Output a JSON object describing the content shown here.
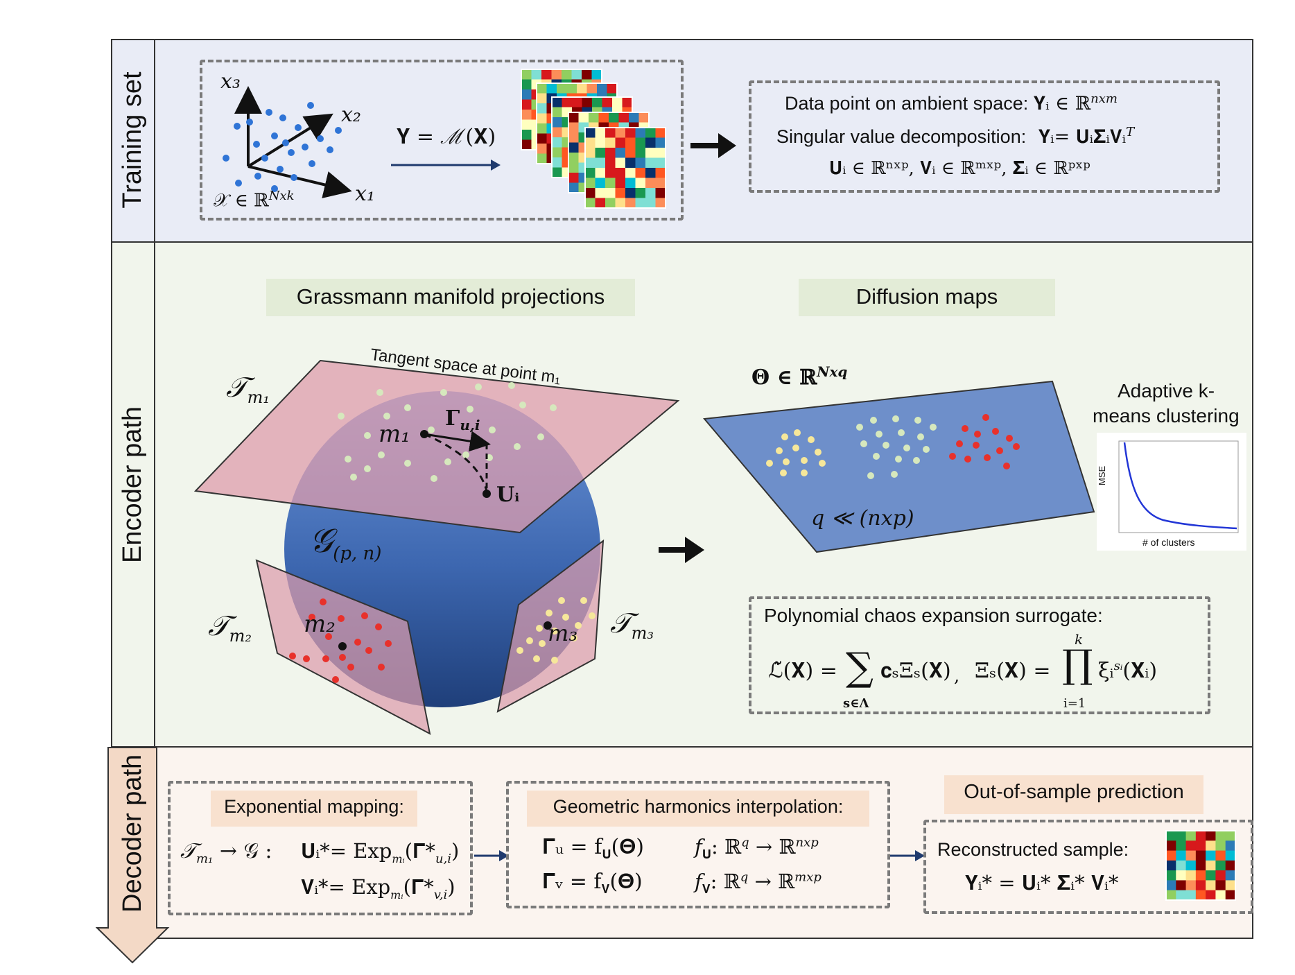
{
  "sections": {
    "training": "Training set",
    "encoder": "Encoder path",
    "decoder": "Decoder path"
  },
  "training": {
    "x3": "x₃",
    "x2": "x₂",
    "x1": "x₁",
    "domain": "𝒳 ∈ ℝ",
    "domain_sup": "Nxk",
    "map_eq": "𝐘 = ℳ(𝐗)",
    "svd_line1_text": "Data point on ambient space:",
    "svd_line1_math": "𝐘ᵢ ∈ ℝ",
    "svd_line1_sup": "nxm",
    "svd_line2_text": "Singular value decomposition:",
    "svd_line2_math": "𝐘ᵢ= 𝐔ᵢ𝚺ᵢ𝐕ᵢ",
    "svd_line2_sup": "T",
    "svd_line3": "𝐔ᵢ ∈ ℝⁿˣᵖ, 𝐕ᵢ ∈ ℝᵐˣᵖ, 𝚺ᵢ ∈ ℝᵖˣᵖ"
  },
  "encoder": {
    "grassmann_title": "Grassmann manifold projections",
    "diffusion_title": "Diffusion maps",
    "tangent_label": "Tangent space at point m₁",
    "t_m1": "𝒯",
    "t_m1_sub": "m₁",
    "t_m2": "𝒯",
    "t_m2_sub": "m₂",
    "t_m3": "𝒯",
    "t_m3_sub": "m₃",
    "m1": "m₁",
    "m2": "m₂",
    "m3": "m₃",
    "gamma": "𝚪",
    "gamma_sub": "u,i",
    "u_i": "𝐔ᵢ",
    "grassmann_symbol": "𝒢",
    "grassmann_sub": "(p, n)",
    "theta": "𝚯 ∈ ℝ",
    "theta_sup": "Nxq",
    "q_rel": "q  ≪ (nxp)",
    "kmeans_title_1": "Adaptive k-",
    "kmeans_title_2": "means clustering",
    "kmeans_ylabel": "MSE",
    "kmeans_xlabel": "# of clusters",
    "pce_title": "Polynomial chaos expansion surrogate:",
    "pce_lhs": "ℒ̃(𝐗) =",
    "pce_sum": "∑",
    "pce_sum_sub": "s∈Λ",
    "pce_term": "𝐜ₛΞₛ(𝐗)",
    "pce_comma": ",",
    "pce_xi": "Ξₛ(𝐗) =",
    "pce_prod": "∏",
    "pce_prod_sup": "k",
    "pce_prod_sub": "i=1",
    "pce_prod_term": "ξᵢ",
    "pce_prod_term_sup": "sᵢ",
    "pce_prod_term_tail": "(𝐗ᵢ)"
  },
  "decoder": {
    "exp_title": "Exponential mapping:",
    "exp_arrow_lhs": "𝒯",
    "exp_arrow_lhs_sub": "m₁",
    "exp_arrow_rhs": "→ 𝒢 :",
    "exp_u": "𝐔ᵢ*= Exp",
    "exp_u_sub": "mᵢ",
    "exp_u_arg": "(𝚪*",
    "exp_u_arg_sub": "u,i",
    "exp_v": "𝐕ᵢ*= Exp",
    "exp_v_sub": "mᵢ",
    "exp_v_arg": "(𝚪*",
    "exp_v_arg_sub": "v,i",
    "close_paren": ")",
    "gh_title": "Geometric harmonics interpolation:",
    "gh_u": "𝚪ᵤ = f",
    "gh_u_sub": "𝐔",
    "gh_u_tail": "(𝚯)",
    "gh_v": "𝚪ᵥ = f",
    "gh_v_sub": "𝐕",
    "gh_v_tail": "(𝚯)",
    "gh_fu": "f",
    "gh_fu_sub": "𝐔",
    "gh_fu_map": ": ℝ",
    "gh_fu_sup": "q",
    "gh_fu_to": " → ℝ",
    "gh_fu_sup2": "nxp",
    "gh_fv": "f",
    "gh_fv_sub": "𝐕",
    "gh_fv_map": ": ℝ",
    "gh_fv_sup": "q",
    "gh_fv_to": " → ℝ",
    "gh_fv_sup2": "mxp",
    "oos_title": "Out-of-sample prediction",
    "recon_label": "Reconstructed sample:",
    "recon_eq": "𝐘ᵢ* = 𝐔ᵢ* 𝚺ᵢ* 𝐕ᵢ*"
  },
  "colors": {
    "training_bg": "#e9ecf6",
    "encoder_bg": "#f1f5ec",
    "decoder_bg": "#fbf4ef",
    "tag_green": "#e3ecd7",
    "tag_peach": "#f8e1cf",
    "plane_pink": "#dd9cac",
    "plane_blue": "#5e86c9",
    "point_blue": "#2f74d6",
    "point_green": "#d6e8bd",
    "point_red": "#e8312b",
    "point_yellow": "#f6e79a",
    "decoder_arrow": "#f3d9c6"
  }
}
